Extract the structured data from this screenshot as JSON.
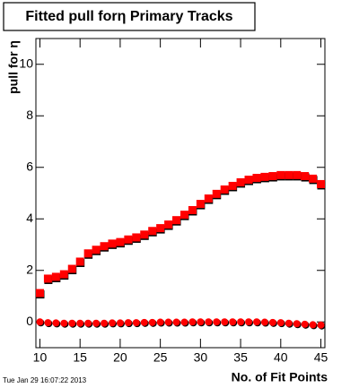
{
  "chart_data": {
    "type": "scatter",
    "title": "Fitted pull forη Primary Tracks",
    "y_label": "pull for η",
    "x_label": "No. of Fit Points",
    "timestamp": "Tue Jan 29 16:07:22 2013",
    "x": [
      10,
      11,
      12,
      13,
      14,
      15,
      16,
      17,
      18,
      19,
      20,
      21,
      22,
      23,
      24,
      25,
      26,
      27,
      28,
      29,
      30,
      31,
      32,
      33,
      34,
      35,
      36,
      37,
      38,
      39,
      40,
      41,
      42,
      43,
      44,
      45
    ],
    "series": [
      {
        "marker": "square",
        "color": "#ff0000",
        "values": [
          1.12,
          1.68,
          1.75,
          1.85,
          2.06,
          2.34,
          2.66,
          2.8,
          2.94,
          3.04,
          3.1,
          3.2,
          3.28,
          3.39,
          3.53,
          3.64,
          3.78,
          3.95,
          4.16,
          4.34,
          4.58,
          4.79,
          4.97,
          5.14,
          5.28,
          5.42,
          5.52,
          5.59,
          5.63,
          5.66,
          5.7,
          5.7,
          5.7,
          5.66,
          5.56,
          5.35
        ]
      },
      {
        "marker": "circle",
        "color": "#ff0000",
        "values": [
          0.0,
          -0.03,
          -0.04,
          -0.05,
          -0.05,
          -0.05,
          -0.05,
          -0.05,
          -0.05,
          -0.04,
          -0.04,
          -0.03,
          -0.03,
          -0.02,
          -0.02,
          -0.01,
          -0.01,
          -0.01,
          -0.01,
          0.0,
          0.0,
          0.0,
          0.0,
          0.0,
          0.0,
          0.0,
          0.0,
          0.0,
          -0.01,
          -0.02,
          -0.03,
          -0.05,
          -0.07,
          -0.09,
          -0.11,
          -0.12
        ]
      }
    ],
    "xlim": [
      9.5,
      45.5
    ],
    "xticks": [
      10,
      15,
      20,
      25,
      30,
      35,
      40,
      45
    ],
    "ylim": [
      -1,
      11
    ],
    "yticks": [
      0,
      2,
      4,
      6,
      8,
      10
    ]
  }
}
